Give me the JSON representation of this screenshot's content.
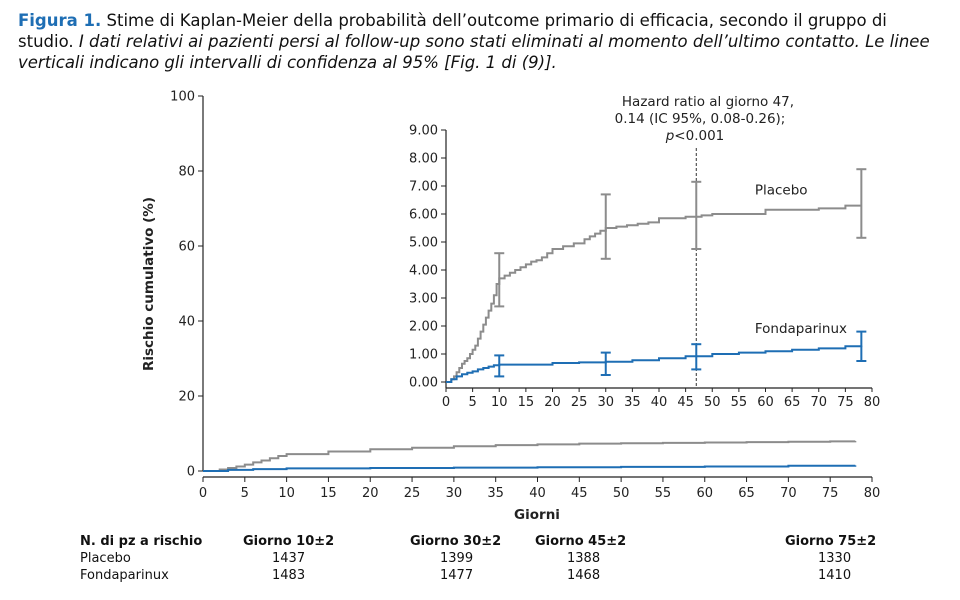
{
  "caption": {
    "label": "Figura 1.",
    "text_plain": " Stime di Kaplan-Meier della probabilità dell’outcome primario di efficacia, secondo il gruppo di studio. ",
    "text_italic": "I dati relativi ai pazienti persi al follow-up sono stati eliminati al momento dell’ultimo contatto. Le linee verticali indicano gli intervalli di confidenza al 95% [Fig. 1 di (9)]."
  },
  "colors": {
    "placebo": "#8c8c8c",
    "fondaparinux": "#1e6eb4",
    "axis": "#222222"
  },
  "chart_data": [
    {
      "type": "line",
      "panel": "main",
      "xlabel": "Giorni",
      "ylabel": "Rischio cumulativo (%)",
      "xlim": [
        0,
        80
      ],
      "ylim": [
        0,
        100
      ],
      "xticks": [
        0,
        5,
        10,
        15,
        20,
        25,
        30,
        35,
        40,
        45,
        50,
        55,
        60,
        65,
        70,
        75,
        80
      ],
      "yticks": [
        0,
        20,
        40,
        60,
        80,
        100
      ],
      "series": [
        {
          "name": "Placebo",
          "color": "#8c8c8c",
          "x": [
            0,
            2,
            3,
            4,
            5,
            6,
            7,
            8,
            9,
            10,
            15,
            20,
            25,
            30,
            35,
            40,
            45,
            50,
            55,
            60,
            65,
            70,
            75,
            78
          ],
          "y": [
            0,
            0.4,
            0.8,
            1.2,
            1.7,
            2.3,
            2.8,
            3.4,
            4.0,
            4.5,
            5.2,
            5.8,
            6.2,
            6.6,
            6.9,
            7.1,
            7.3,
            7.4,
            7.5,
            7.6,
            7.7,
            7.8,
            7.9,
            8.0
          ]
        },
        {
          "name": "Fondaparinux",
          "color": "#1e6eb4",
          "x": [
            0,
            3,
            6,
            10,
            20,
            30,
            40,
            50,
            60,
            70,
            78
          ],
          "y": [
            0,
            0.3,
            0.5,
            0.7,
            0.8,
            0.9,
            1.0,
            1.1,
            1.2,
            1.4,
            1.5
          ]
        }
      ]
    },
    {
      "type": "line",
      "panel": "inset",
      "xlim": [
        0,
        80
      ],
      "ylim": [
        0,
        9
      ],
      "xticks": [
        0,
        5,
        10,
        15,
        20,
        25,
        30,
        35,
        40,
        45,
        50,
        55,
        60,
        65,
        70,
        75,
        80
      ],
      "yticks": [
        "0.00",
        "1.00",
        "2.00",
        "3.00",
        "4.00",
        "5.00",
        "6.00",
        "7.00",
        "8.00",
        "9.00"
      ],
      "annotation": {
        "x": 47,
        "line1": "Hazard ratio al giorno 47,",
        "line2": "0.14 (IC 95%, 0.08-0.26);",
        "line3": "p<0.001"
      },
      "series": [
        {
          "name": "Placebo",
          "color": "#8c8c8c",
          "x": [
            0,
            1,
            1.5,
            2,
            2.5,
            3,
            3.5,
            4,
            4.5,
            5,
            5.5,
            6,
            6.5,
            7,
            7.5,
            8,
            8.5,
            9,
            9.5,
            10,
            11,
            12,
            13,
            14,
            15,
            16,
            17,
            18,
            19,
            20,
            22,
            24,
            26,
            27,
            28,
            29,
            30,
            32,
            34,
            36,
            38,
            40,
            45,
            48,
            50,
            60,
            70,
            75,
            78
          ],
          "y": [
            0,
            0.1,
            0.2,
            0.35,
            0.5,
            0.65,
            0.75,
            0.85,
            1.0,
            1.15,
            1.3,
            1.55,
            1.8,
            2.05,
            2.3,
            2.55,
            2.8,
            3.1,
            3.5,
            3.7,
            3.8,
            3.9,
            4.0,
            4.1,
            4.2,
            4.3,
            4.35,
            4.45,
            4.6,
            4.75,
            4.85,
            4.95,
            5.1,
            5.2,
            5.3,
            5.4,
            5.5,
            5.55,
            5.6,
            5.65,
            5.7,
            5.85,
            5.9,
            5.95,
            6.0,
            6.15,
            6.2,
            6.3,
            6.3
          ]
        },
        {
          "name": "Fondaparinux",
          "color": "#1e6eb4",
          "x": [
            0,
            1,
            2,
            3,
            4,
            5,
            6,
            7,
            8,
            9,
            10,
            20,
            25,
            30,
            35,
            40,
            45,
            50,
            55,
            60,
            65,
            70,
            75,
            78
          ],
          "y": [
            0,
            0.1,
            0.2,
            0.28,
            0.33,
            0.38,
            0.45,
            0.5,
            0.55,
            0.6,
            0.62,
            0.68,
            0.7,
            0.72,
            0.78,
            0.85,
            0.92,
            1.0,
            1.05,
            1.1,
            1.15,
            1.2,
            1.28,
            1.3
          ]
        }
      ],
      "error_bars": [
        {
          "series": "Placebo",
          "color": "#8c8c8c",
          "x": 10,
          "lo": 2.7,
          "hi": 4.6
        },
        {
          "series": "Placebo",
          "color": "#8c8c8c",
          "x": 30,
          "lo": 4.4,
          "hi": 6.7
        },
        {
          "series": "Placebo",
          "color": "#8c8c8c",
          "x": 47,
          "lo": 4.75,
          "hi": 7.15
        },
        {
          "series": "Placebo",
          "color": "#8c8c8c",
          "x": 78,
          "lo": 5.15,
          "hi": 7.6
        },
        {
          "series": "Fondaparinux",
          "color": "#1e6eb4",
          "x": 10,
          "lo": 0.2,
          "hi": 0.95
        },
        {
          "series": "Fondaparinux",
          "color": "#1e6eb4",
          "x": 30,
          "lo": 0.25,
          "hi": 1.05
        },
        {
          "series": "Fondaparinux",
          "color": "#1e6eb4",
          "x": 47,
          "lo": 0.45,
          "hi": 1.35
        },
        {
          "series": "Fondaparinux",
          "color": "#1e6eb4",
          "x": 78,
          "lo": 0.75,
          "hi": 1.8
        }
      ],
      "series_labels": [
        {
          "text": "Placebo",
          "x": 58,
          "y": 6.7
        },
        {
          "text": "Fondaparinux",
          "x": 58,
          "y": 1.75
        }
      ]
    }
  ],
  "risk_table": {
    "title": "N. di pz a rischio",
    "headers": [
      "Giorno 10±2",
      "Giorno 30±2",
      "Giorno 45±2",
      "Giorno 75±2"
    ],
    "rows": [
      {
        "label": "Placebo",
        "values": [
          "1437",
          "1399",
          "1388",
          "1330"
        ]
      },
      {
        "label": "Fondaparinux",
        "values": [
          "1483",
          "1477",
          "1468",
          "1410"
        ]
      }
    ]
  }
}
